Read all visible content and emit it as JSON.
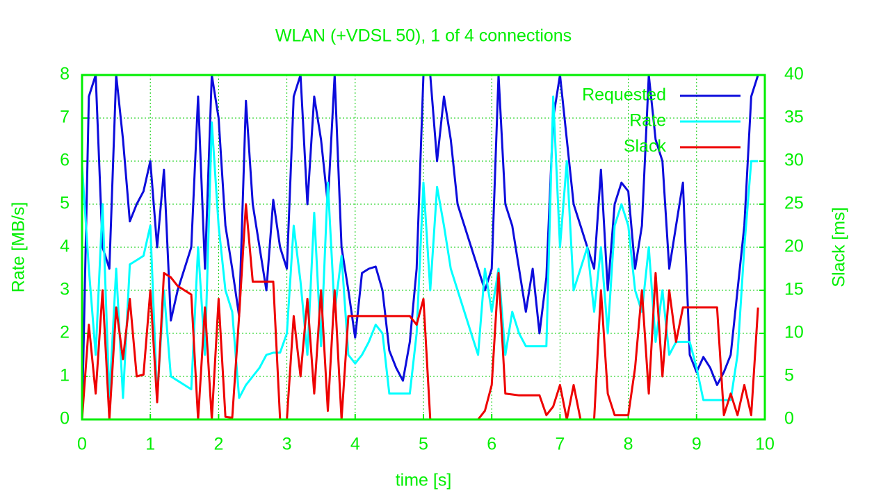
{
  "chart_data": {
    "type": "line",
    "title": "WLAN (+VDSL 50), 1 of 4 connections",
    "xlabel": "time [s]",
    "ylabel": "Rate [MB/s]",
    "y2label": "Slack [ms]",
    "x": [
      0,
      0.1,
      0.2,
      0.3,
      0.4,
      0.5,
      0.6,
      0.7,
      0.8,
      0.9,
      1.0,
      1.1,
      1.2,
      1.3,
      1.4,
      1.5,
      1.6,
      1.7,
      1.8,
      1.9,
      2.0,
      2.1,
      2.2,
      2.3,
      2.4,
      2.5,
      2.6,
      2.7,
      2.8,
      2.9,
      3.0,
      3.1,
      3.2,
      3.3,
      3.4,
      3.5,
      3.6,
      3.7,
      3.8,
      3.9,
      4.0,
      4.1,
      4.2,
      4.3,
      4.4,
      4.5,
      4.6,
      4.7,
      4.8,
      4.9,
      5.0,
      5.1,
      5.2,
      5.3,
      5.4,
      5.5,
      5.6,
      5.7,
      5.8,
      5.9,
      6.0,
      6.1,
      6.2,
      6.3,
      6.4,
      6.5,
      6.6,
      6.7,
      6.8,
      6.9,
      7.0,
      7.1,
      7.2,
      7.3,
      7.4,
      7.5,
      7.6,
      7.7,
      7.8,
      7.9,
      8.0,
      8.1,
      8.2,
      8.3,
      8.4,
      8.5,
      8.6,
      8.7,
      8.8,
      8.9,
      9.0,
      9.1,
      9.2,
      9.3,
      9.4,
      9.5,
      9.6,
      9.7,
      9.8,
      9.9
    ],
    "series": [
      {
        "name": "Requested",
        "color": "#0c0cdc",
        "values": [
          0,
          7.5,
          8,
          4,
          3.5,
          8,
          6.5,
          4.6,
          5,
          5.3,
          6,
          4,
          5.8,
          2.3,
          3,
          3.5,
          4,
          7.5,
          3.5,
          8,
          7,
          4.5,
          3.5,
          2.4,
          7.4,
          5,
          4,
          3,
          5.1,
          4,
          3.5,
          7.5,
          8,
          5,
          7.5,
          6.5,
          5,
          8,
          4,
          3,
          1.9,
          3.4,
          3.5,
          3.55,
          3,
          1.6,
          1.2,
          0.9,
          1.8,
          3.5,
          8,
          8,
          6,
          7.5,
          6.5,
          5,
          4.5,
          4,
          3.5,
          3,
          3.5,
          8,
          5,
          4.5,
          3.5,
          2.5,
          3.5,
          2,
          3.3,
          7,
          8,
          6.5,
          5,
          4.5,
          4,
          3.5,
          5.8,
          3,
          5,
          5.5,
          5.3,
          3.5,
          4.5,
          8,
          6.5,
          6,
          3.5,
          4.5,
          5.5,
          1.5,
          1.1,
          1.45,
          1.2,
          0.8,
          1.1,
          1.5,
          3,
          4.5,
          7.5,
          8
        ]
      },
      {
        "name": "Rate",
        "color": "#00ffff",
        "values": [
          5.9,
          3.5,
          1.5,
          5,
          0.5,
          3.5,
          0.5,
          3.6,
          3.7,
          3.8,
          4.5,
          0.5,
          3,
          1,
          0.9,
          0.8,
          0.7,
          4,
          1.5,
          6.9,
          4.5,
          3,
          2.5,
          0.5,
          0.8,
          1,
          1.2,
          1.5,
          1.55,
          1.55,
          2,
          4.5,
          3.2,
          1.5,
          4.8,
          1.7,
          5.5,
          2.5,
          3.8,
          1.5,
          1.3,
          1.5,
          1.8,
          2.2,
          2,
          0.6,
          0.6,
          0.6,
          0.6,
          2,
          5.5,
          3,
          5.4,
          4.5,
          3.5,
          3,
          2.5,
          2,
          1.5,
          3.5,
          2.5,
          3.5,
          1.5,
          2.5,
          2,
          1.7,
          1.7,
          1.7,
          1.7,
          7.5,
          4,
          6,
          3,
          3.5,
          4,
          2.5,
          4,
          2,
          4.5,
          5,
          4.5,
          3,
          2.5,
          4,
          1.8,
          3,
          1.5,
          1.8,
          1.8,
          1.8,
          1.2,
          0.45,
          0.45,
          0.45,
          0.45,
          0.45,
          1.5,
          4,
          6,
          6
        ]
      },
      {
        "name": "Slack",
        "color": "#ee0000",
        "axis": "y2",
        "values": [
          0,
          11,
          3,
          15,
          0,
          13,
          7,
          14,
          5,
          5.2,
          15,
          2,
          17,
          16.5,
          15.5,
          15,
          14.5,
          0,
          13,
          0,
          14,
          0.3,
          0.2,
          12,
          25,
          16,
          16,
          16,
          16,
          0,
          0,
          12,
          5,
          14,
          3,
          15,
          1,
          15,
          0,
          12,
          12,
          12,
          12,
          12,
          12,
          12,
          12,
          12,
          12,
          11,
          14,
          0,
          0,
          0,
          0,
          0,
          0,
          0,
          0,
          1,
          4,
          17,
          3,
          2.9,
          2.8,
          2.8,
          2.8,
          2.8,
          0.5,
          1.5,
          4,
          0,
          4,
          0,
          0,
          0,
          15,
          3,
          0.5,
          0.5,
          0.5,
          6,
          15,
          3,
          17,
          5,
          15,
          9,
          13,
          13,
          13,
          13,
          13,
          13,
          0.5,
          3,
          0.5,
          4,
          0.5,
          13
        ]
      }
    ],
    "xlim": [
      0,
      10
    ],
    "xticks": [
      0,
      1,
      2,
      3,
      4,
      5,
      6,
      7,
      8,
      9,
      10
    ],
    "ylim": [
      0,
      8
    ],
    "yticks": [
      0,
      1,
      2,
      3,
      4,
      5,
      6,
      7,
      8
    ],
    "y2lim": [
      0,
      40
    ],
    "y2ticks": [
      0,
      5,
      10,
      15,
      20,
      25,
      30,
      35,
      40
    ],
    "grid": true,
    "legend": "top-right"
  }
}
